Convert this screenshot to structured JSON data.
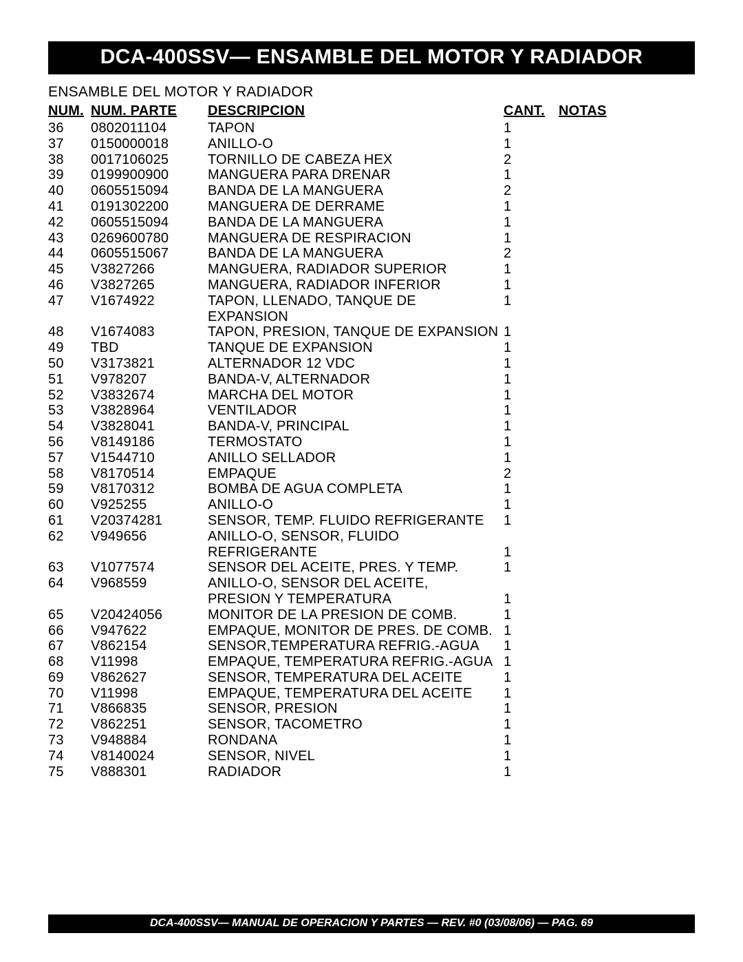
{
  "title_bar": "DCA-400SSV— ENSAMBLE DEL MOTOR Y RADIADOR",
  "subtitle": "ENSAMBLE DEL MOTOR Y RADIADOR",
  "columns": {
    "num": "NUM.",
    "part": "NUM. PARTE",
    "desc": "DESCRIPCION",
    "cant": "CANT.",
    "notas": "NOTAS"
  },
  "rows": [
    {
      "num": "36",
      "part": "0802011104",
      "desc": "TAPON",
      "cant": "1",
      "notas": ""
    },
    {
      "num": "37",
      "part": "0150000018",
      "desc": "ANILLO-O",
      "cant": "1",
      "notas": ""
    },
    {
      "num": "38",
      "part": "0017106025",
      "desc": "TORNILLO DE CABEZA HEX",
      "cant": "2",
      "notas": ""
    },
    {
      "num": "39",
      "part": "0199900900",
      "desc": "MANGUERA PARA DRENAR",
      "cant": "1",
      "notas": ""
    },
    {
      "num": "40",
      "part": "0605515094",
      "desc": "BANDA DE LA MANGUERA",
      "cant": "2",
      "notas": ""
    },
    {
      "num": "41",
      "part": "0191302200",
      "desc": "MANGUERA DE DERRAME",
      "cant": "1",
      "notas": ""
    },
    {
      "num": "42",
      "part": "0605515094",
      "desc": "BANDA DE LA MANGUERA",
      "cant": "1",
      "notas": ""
    },
    {
      "num": "43",
      "part": "0269600780",
      "desc": "MANGUERA DE RESPIRACION",
      "cant": "1",
      "notas": ""
    },
    {
      "num": "44",
      "part": "0605515067",
      "desc": "BANDA DE LA MANGUERA",
      "cant": "2",
      "notas": ""
    },
    {
      "num": "45",
      "part": "V3827266",
      "desc": "MANGUERA, RADIADOR SUPERIOR",
      "cant": "1",
      "notas": ""
    },
    {
      "num": "46",
      "part": "V3827265",
      "desc": "MANGUERA, RADIADOR INFERIOR",
      "cant": "1",
      "notas": ""
    },
    {
      "num": "47",
      "part": "V1674922",
      "desc": "TAPON, LLENADO, TANQUE DE EXPANSION",
      "cant": "1",
      "notas": ""
    },
    {
      "num": "48",
      "part": "V1674083",
      "desc": "TAPON, PRESION, TANQUE DE EXPANSION",
      "cant": "1",
      "notas": ""
    },
    {
      "num": "49",
      "part": "TBD",
      "desc": "TANQUE DE EXPANSION",
      "cant": "1",
      "notas": ""
    },
    {
      "num": "50",
      "part": "V3173821",
      "desc": "ALTERNADOR 12 VDC",
      "cant": "1",
      "notas": ""
    },
    {
      "num": "51",
      "part": "V978207",
      "desc": "BANDA-V, ALTERNADOR",
      "cant": "1",
      "notas": ""
    },
    {
      "num": "52",
      "part": "V3832674",
      "desc": "MARCHA DEL  MOTOR",
      "cant": "1",
      "notas": ""
    },
    {
      "num": "53",
      "part": "V3828964",
      "desc": "VENTILADOR",
      "cant": "1",
      "notas": ""
    },
    {
      "num": "54",
      "part": "V3828041",
      "desc": "BANDA-V, PRINCIPAL",
      "cant": "1",
      "notas": ""
    },
    {
      "num": "56",
      "part": "V8149186",
      "desc": "TERMOSTATO",
      "cant": "1",
      "notas": ""
    },
    {
      "num": "57",
      "part": "V1544710",
      "desc": "ANILLO SELLADOR",
      "cant": "1",
      "notas": ""
    },
    {
      "num": "58",
      "part": "V8170514",
      "desc": "EMPAQUE",
      "cant": "2",
      "notas": ""
    },
    {
      "num": "59",
      "part": "V8170312",
      "desc": "BOMBA DE AGUA COMPLETA",
      "cant": "1",
      "notas": ""
    },
    {
      "num": "60",
      "part": "V925255",
      "desc": "ANILLO-O",
      "cant": "1",
      "notas": ""
    },
    {
      "num": "61",
      "part": "V20374281",
      "desc": "SENSOR, TEMP.  FLUIDO REFRIGERANTE",
      "cant": "1",
      "notas": ""
    },
    {
      "num": "62",
      "part": "V949656",
      "desc": "ANILLO-O, SENSOR, FLUIDO",
      "cant": "",
      "notas": ""
    },
    {
      "num": "",
      "part": "",
      "desc": "REFRIGERANTE",
      "cant": "1",
      "notas": ""
    },
    {
      "num": "63",
      "part": "V1077574",
      "desc": "SENSOR DEL ACEITE, PRES. Y TEMP.",
      "cant": "1",
      "notas": ""
    },
    {
      "num": "64",
      "part": "V968559",
      "desc": "ANILLO-O, SENSOR DEL ACEITE,",
      "cant": "",
      "notas": ""
    },
    {
      "num": "",
      "part": "",
      "desc": "PRESION Y TEMPERATURA",
      "cant": "1",
      "notas": ""
    },
    {
      "num": "65",
      "part": "V20424056",
      "desc": "MONITOR DE LA PRESION DE COMB.",
      "cant": "1",
      "notas": ""
    },
    {
      "num": "66",
      "part": "V947622",
      "desc": "EMPAQUE, MONITOR DE PRES. DE COMB.",
      "cant": "1",
      "notas": ""
    },
    {
      "num": "67",
      "part": "V862154",
      "desc": "SENSOR,TEMPERATURA REFRIG.-AGUA",
      "cant": "1",
      "notas": ""
    },
    {
      "num": "68",
      "part": "V11998",
      "desc": "EMPAQUE, TEMPERATURA REFRIG.-AGUA",
      "cant": "1",
      "notas": ""
    },
    {
      "num": "69",
      "part": "V862627",
      "desc": "SENSOR, TEMPERATURA DEL ACEITE",
      "cant": "1",
      "notas": ""
    },
    {
      "num": "70",
      "part": "V11998",
      "desc": "EMPAQUE, TEMPERATURA DEL ACEITE",
      "cant": "1",
      "notas": ""
    },
    {
      "num": "71",
      "part": "V866835",
      "desc": "SENSOR, PRESION",
      "cant": "1",
      "notas": ""
    },
    {
      "num": "72",
      "part": "V862251",
      "desc": "SENSOR, TACOMETRO",
      "cant": "1",
      "notas": ""
    },
    {
      "num": "73",
      "part": "V948884",
      "desc": "RONDANA",
      "cant": "1",
      "notas": ""
    },
    {
      "num": "74",
      "part": "V8140024",
      "desc": "SENSOR, NIVEL",
      "cant": "1",
      "notas": ""
    },
    {
      "num": "75",
      "part": "V888301",
      "desc": "RADIADOR",
      "cant": "1",
      "notas": ""
    }
  ],
  "footer": "DCA-400SSV— MANUAL DE OPERACION Y PARTES  — REV. #0  (03/08/06) — PAG. 69"
}
